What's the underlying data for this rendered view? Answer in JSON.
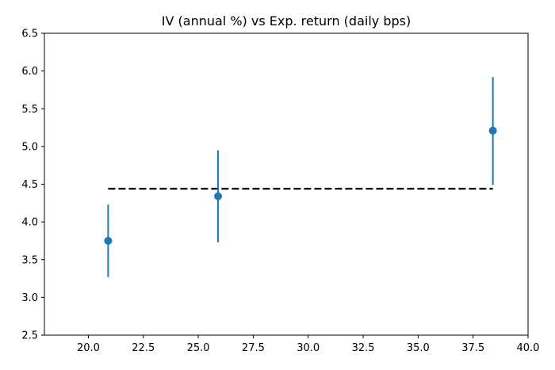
{
  "chart_data": {
    "type": "scatter",
    "title": "IV (annual %) vs Exp. return (daily bps)",
    "xlabel": "",
    "ylabel": "",
    "xlim": [
      18.0,
      40.0
    ],
    "ylim": [
      2.5,
      6.5
    ],
    "xticks": [
      20.0,
      22.5,
      25.0,
      27.5,
      30.0,
      32.5,
      35.0,
      37.5,
      40.0
    ],
    "xtick_labels": [
      "20.0",
      "22.5",
      "25.0",
      "27.5",
      "30.0",
      "32.5",
      "35.0",
      "37.5",
      "40.0"
    ],
    "yticks": [
      2.5,
      3.0,
      3.5,
      4.0,
      4.5,
      5.0,
      5.5,
      6.0,
      6.5
    ],
    "ytick_labels": [
      "2.5",
      "3.0",
      "3.5",
      "4.0",
      "4.5",
      "5.0",
      "5.5",
      "6.0",
      "6.5"
    ],
    "grid": false,
    "series": [
      {
        "x": [
          20.9,
          25.9,
          38.4
        ],
        "y": [
          3.75,
          4.34,
          5.21
        ],
        "y_err_low": [
          3.27,
          3.73,
          4.49
        ],
        "y_err_high": [
          4.23,
          4.95,
          5.92
        ],
        "color": "#1f77b4",
        "marker": "circle"
      }
    ],
    "reference_line": {
      "x": [
        20.9,
        38.4
      ],
      "y": 4.44,
      "style": "dashed",
      "color": "#000000"
    }
  }
}
